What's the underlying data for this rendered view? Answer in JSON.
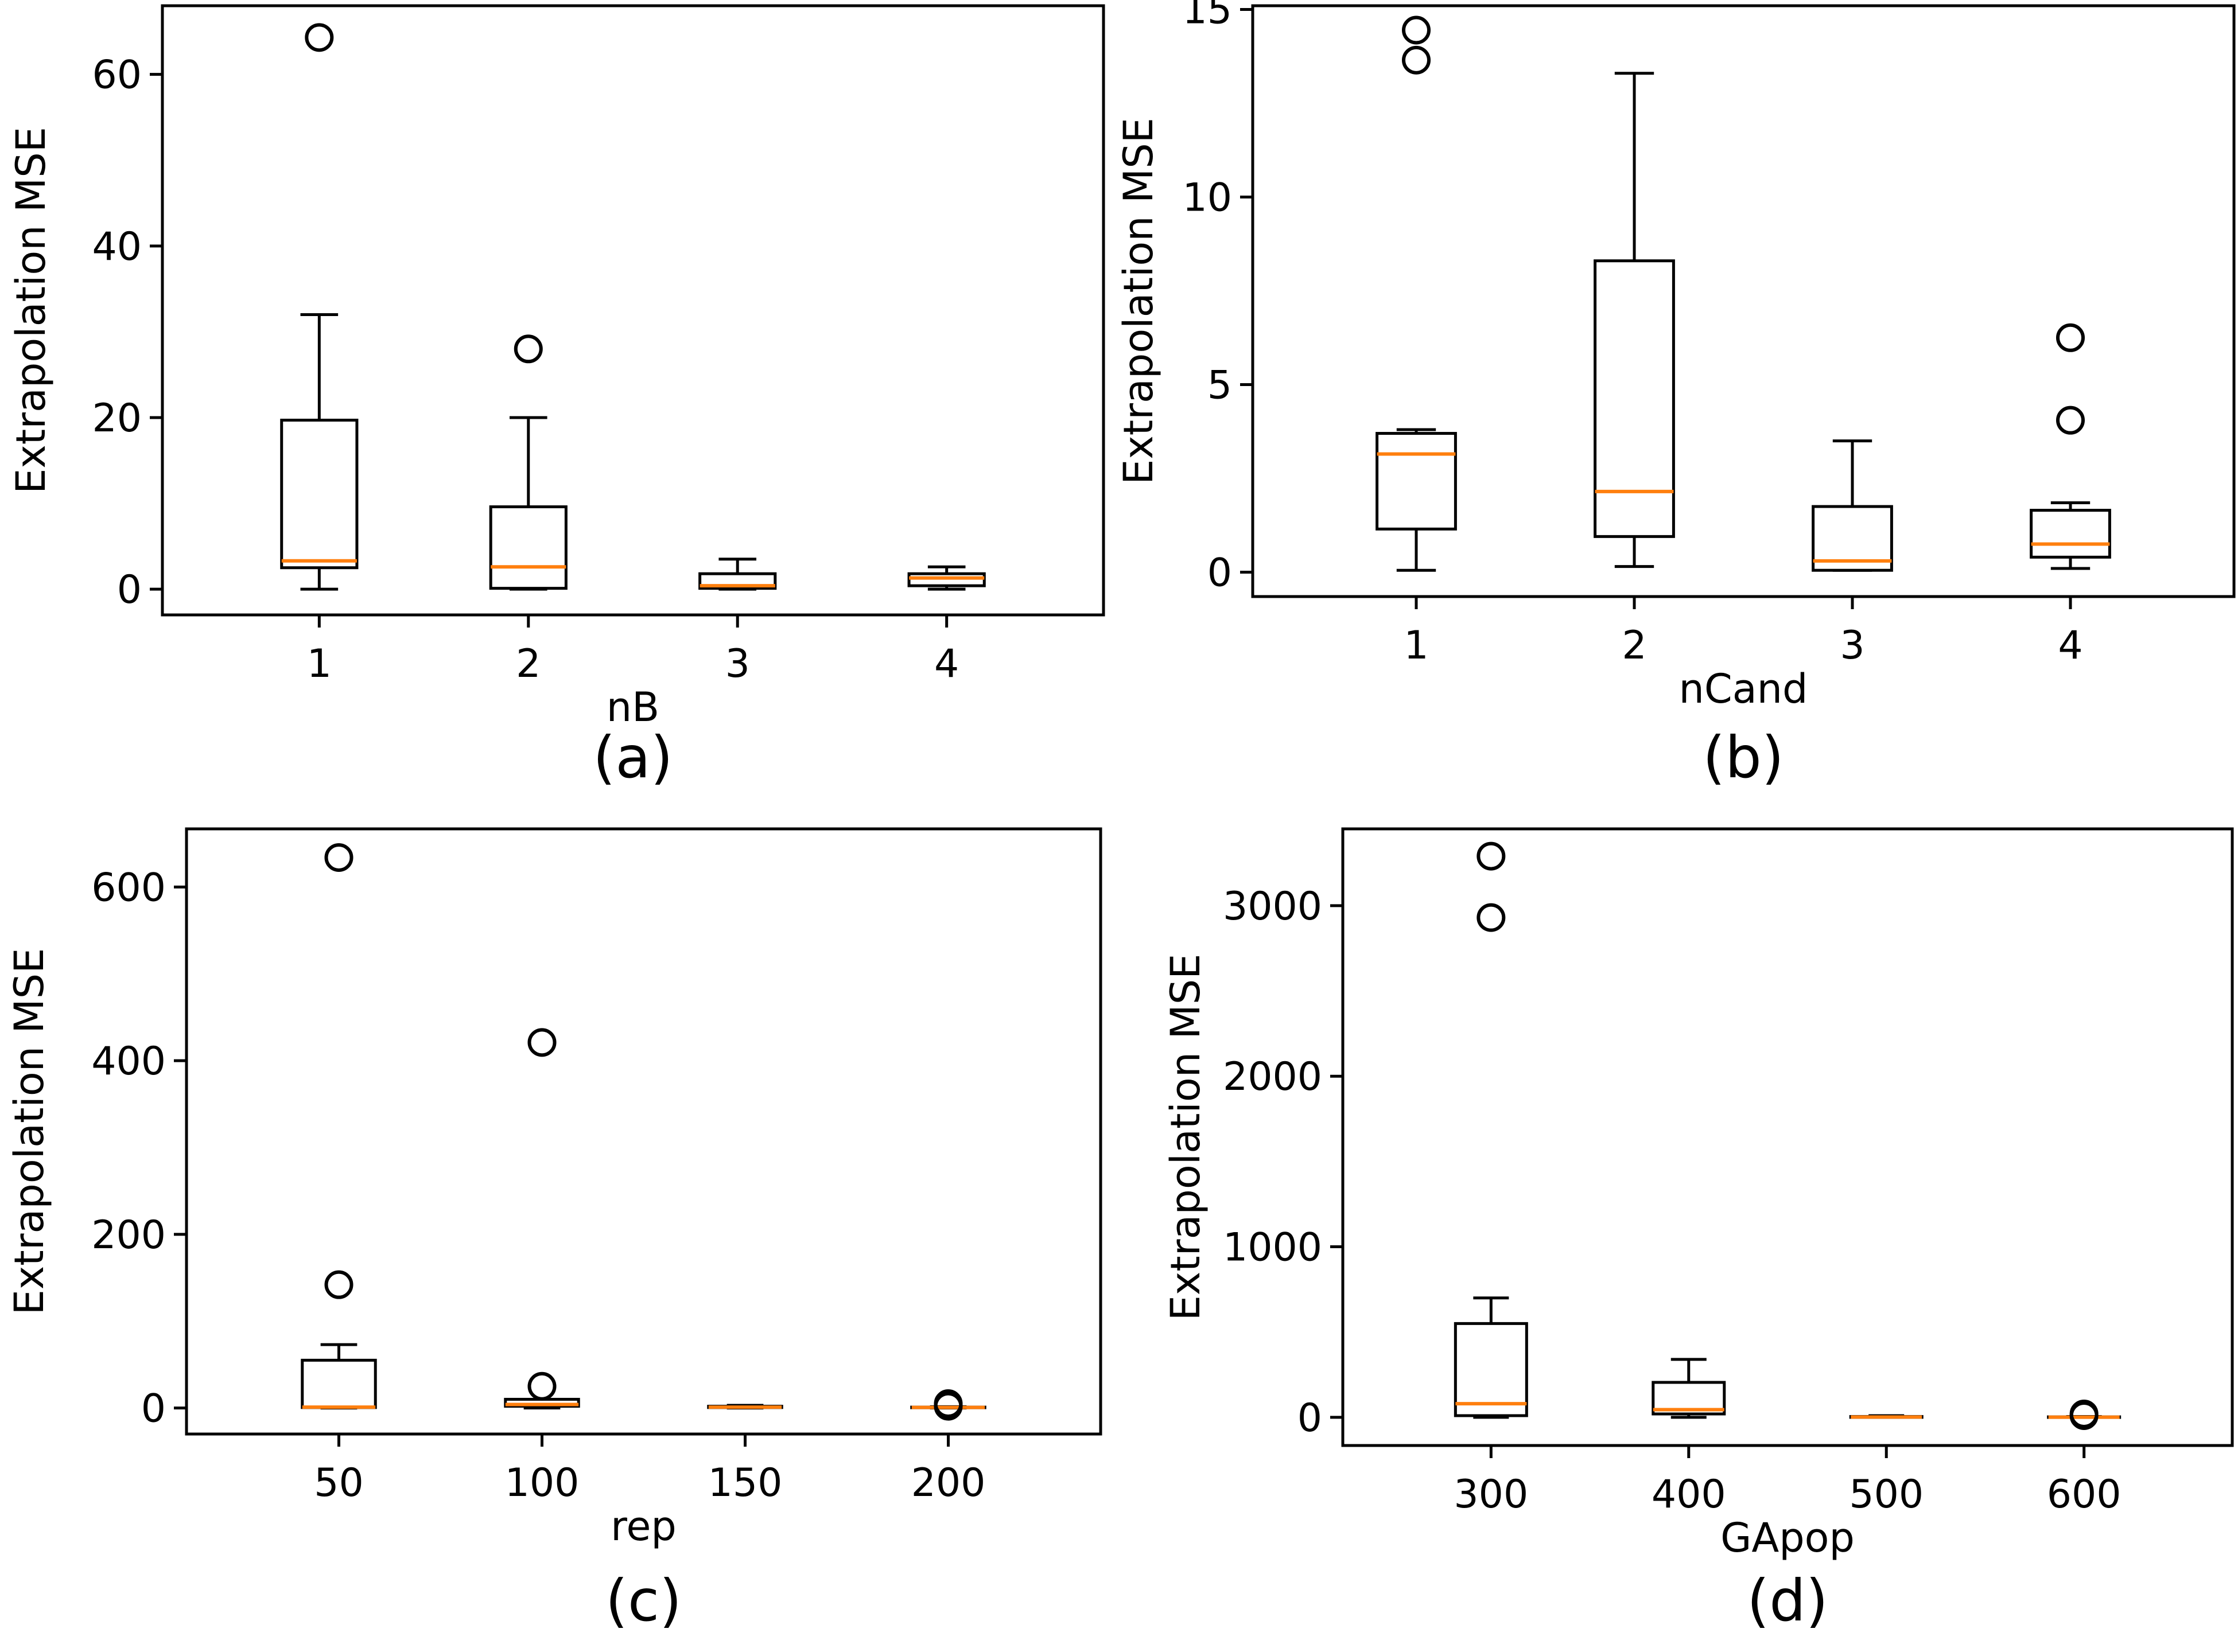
{
  "figure": {
    "colors": {
      "box": "#000000",
      "median": "#ff7f0e",
      "outlier": "#000000",
      "background": "#ffffff"
    }
  },
  "chart_data": [
    {
      "type": "boxplot",
      "panel_label": "(a)",
      "xlabel": "nB",
      "ylabel": "Extrapolation MSE",
      "categories": [
        "1",
        "2",
        "3",
        "4"
      ],
      "ylim": [
        -3,
        68
      ],
      "yticks": [
        0,
        20,
        40,
        60
      ],
      "boxes": [
        {
          "category": "1",
          "whisker_low": 0.0,
          "q1": 2.5,
          "median": 3.3,
          "q3": 19.7,
          "whisker_high": 32.0,
          "outliers": [
            64.3
          ]
        },
        {
          "category": "2",
          "whisker_low": 0.0,
          "q1": 0.1,
          "median": 2.6,
          "q3": 9.6,
          "whisker_high": 20.0,
          "outliers": [
            28.0
          ]
        },
        {
          "category": "3",
          "whisker_low": 0.0,
          "q1": 0.1,
          "median": 0.4,
          "q3": 1.8,
          "whisker_high": 3.5,
          "outliers": []
        },
        {
          "category": "4",
          "whisker_low": 0.0,
          "q1": 0.4,
          "median": 1.3,
          "q3": 1.8,
          "whisker_high": 2.6,
          "outliers": []
        }
      ]
    },
    {
      "type": "boxplot",
      "panel_label": "(b)",
      "xlabel": "nCand",
      "ylabel": "Extrapolation MSE",
      "categories": [
        "1",
        "2",
        "3",
        "4"
      ],
      "ylim": [
        -0.65,
        15.1
      ],
      "yticks": [
        0,
        5,
        10,
        15
      ],
      "boxes": [
        {
          "category": "1",
          "whisker_low": 0.05,
          "q1": 1.15,
          "median": 3.15,
          "q3": 3.7,
          "whisker_high": 3.8,
          "outliers": [
            13.65,
            14.45
          ]
        },
        {
          "category": "2",
          "whisker_low": 0.15,
          "q1": 0.95,
          "median": 2.15,
          "q3": 8.3,
          "whisker_high": 13.3,
          "outliers": []
        },
        {
          "category": "3",
          "whisker_low": 0.05,
          "q1": 0.05,
          "median": 0.3,
          "q3": 1.75,
          "whisker_high": 3.5,
          "outliers": []
        },
        {
          "category": "4",
          "whisker_low": 0.1,
          "q1": 0.4,
          "median": 0.75,
          "q3": 1.65,
          "whisker_high": 1.85,
          "outliers": [
            4.05,
            6.25
          ]
        }
      ]
    },
    {
      "type": "boxplot",
      "panel_label": "(c)",
      "xlabel": "rep",
      "ylabel": "Extrapolation MSE",
      "categories": [
        "50",
        "100",
        "150",
        "200"
      ],
      "ylim": [
        -30,
        667
      ],
      "yticks": [
        0,
        200,
        400,
        600
      ],
      "boxes": [
        {
          "category": "50",
          "whisker_low": 0,
          "q1": 0.5,
          "median": 1,
          "q3": 55,
          "whisker_high": 73,
          "outliers": [
            142,
            634
          ]
        },
        {
          "category": "100",
          "whisker_low": 0,
          "q1": 2,
          "median": 4,
          "q3": 10,
          "whisker_high": 10,
          "outliers": [
            25,
            421
          ]
        },
        {
          "category": "150",
          "whisker_low": 0,
          "q1": 0.5,
          "median": 1,
          "q3": 2,
          "whisker_high": 3,
          "outliers": []
        },
        {
          "category": "200",
          "whisker_low": 0,
          "q1": 0.3,
          "median": 0.6,
          "q3": 1,
          "whisker_high": 1.5,
          "outliers": [
            2,
            5
          ]
        }
      ]
    },
    {
      "type": "boxplot",
      "panel_label": "(d)",
      "xlabel": "GApop",
      "ylabel": "Extrapolation MSE",
      "categories": [
        "300",
        "400",
        "500",
        "600"
      ],
      "ylim": [
        -165,
        3450
      ],
      "yticks": [
        0,
        1000,
        2000,
        3000
      ],
      "boxes": [
        {
          "category": "300",
          "whisker_low": 0,
          "q1": 10,
          "median": 80,
          "q3": 550,
          "whisker_high": 700,
          "outliers": [
            2930,
            3290
          ]
        },
        {
          "category": "400",
          "whisker_low": 0,
          "q1": 20,
          "median": 45,
          "q3": 205,
          "whisker_high": 340,
          "outliers": []
        },
        {
          "category": "500",
          "whisker_low": 0,
          "q1": 0,
          "median": 2,
          "q3": 5,
          "whisker_high": 10,
          "outliers": []
        },
        {
          "category": "600",
          "whisker_low": 0,
          "q1": 0,
          "median": 1,
          "q3": 3,
          "whisker_high": 5,
          "outliers": [
            10,
            20
          ]
        }
      ]
    }
  ]
}
